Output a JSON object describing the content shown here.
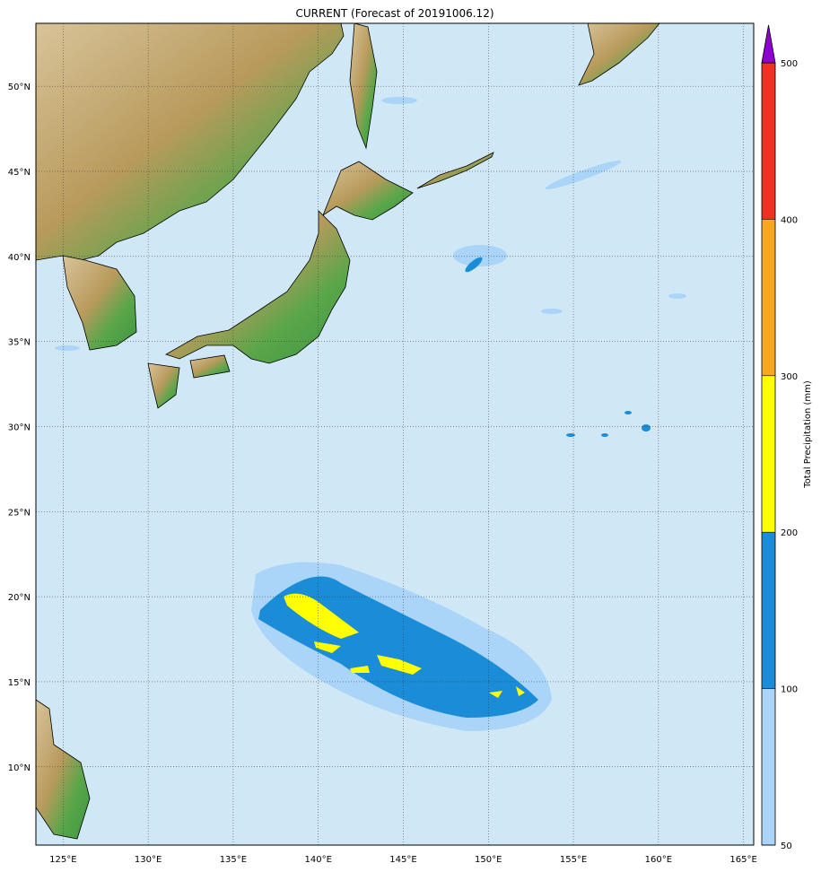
{
  "title": "CURRENT (Forecast of 20191006.12)",
  "map": {
    "lon_range": [
      123.4,
      165.6
    ],
    "lat_range": [
      5.4,
      53.7
    ],
    "lon_ticks": [
      {
        "v": 125,
        "label": "125°E"
      },
      {
        "v": 130,
        "label": "130°E"
      },
      {
        "v": 135,
        "label": "135°E"
      },
      {
        "v": 140,
        "label": "140°E"
      },
      {
        "v": 145,
        "label": "145°E"
      },
      {
        "v": 150,
        "label": "150°E"
      },
      {
        "v": 155,
        "label": "155°E"
      },
      {
        "v": 160,
        "label": "160°E"
      },
      {
        "v": 165,
        "label": "165°E"
      }
    ],
    "lat_ticks": [
      {
        "v": 50,
        "label": "50°N"
      },
      {
        "v": 45,
        "label": "45°N"
      },
      {
        "v": 40,
        "label": "40°N"
      },
      {
        "v": 35,
        "label": "35°N"
      },
      {
        "v": 30,
        "label": "30°N"
      },
      {
        "v": 25,
        "label": "25°N"
      },
      {
        "v": 20,
        "label": "20°N"
      },
      {
        "v": 15,
        "label": "15°N"
      },
      {
        "v": 10,
        "label": "10°N"
      }
    ],
    "ocean_color": "#d0e8f6",
    "grid": true
  },
  "colorbar": {
    "label": "Total Precipitation (mm)",
    "levels": [
      {
        "from": 50,
        "to": 100,
        "color": "#aad4f8"
      },
      {
        "from": 100,
        "to": 200,
        "color": "#1a8cd8"
      },
      {
        "from": 200,
        "to": 300,
        "color": "#ffff00"
      },
      {
        "from": 300,
        "to": 400,
        "color": "#f8a820"
      },
      {
        "from": 400,
        "to": 500,
        "color": "#f03020"
      }
    ],
    "extend_color": "#9000d0",
    "ticks": [
      "50",
      "100",
      "200",
      "300",
      "400",
      "500"
    ]
  }
}
